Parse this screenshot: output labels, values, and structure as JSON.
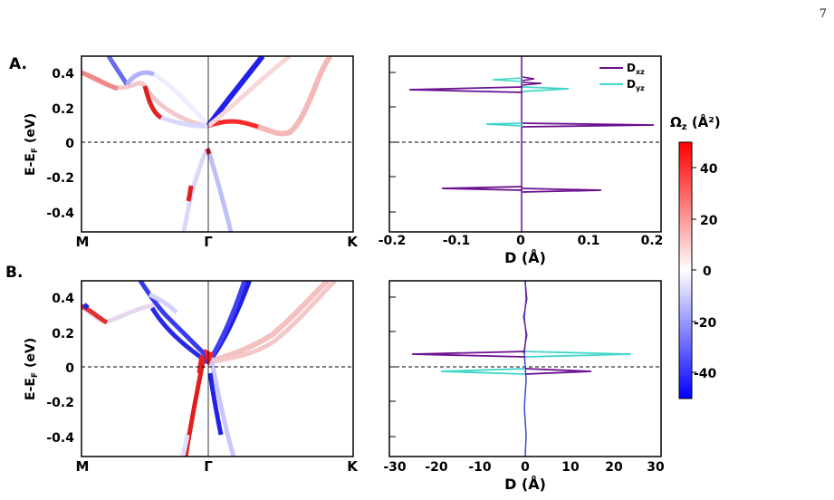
{
  "page_number": "7",
  "panel_a_label": "A.",
  "panel_b_label": "B.",
  "band_x_ticks": [
    "M",
    "Γ",
    "K"
  ],
  "band_y_ticks": [
    "0.4",
    "0.2",
    "0",
    "-0.2",
    "-0.4"
  ],
  "band_ylabel": "E-E",
  "band_ylabel_sub": "F",
  "band_ylabel_tail": " (eV)",
  "dipole_a_x_ticks": [
    "-0.2",
    "-0.1",
    "0",
    "0.1",
    "0.2"
  ],
  "dipole_b_x_ticks": [
    "-30",
    "-20",
    "-10",
    "0",
    "10",
    "20",
    "30"
  ],
  "dipole_xlabel": "D (Å)",
  "legend": [
    {
      "base": "D",
      "sub": "xz",
      "color": "#6a0f8e"
    },
    {
      "base": "D",
      "sub": "yz",
      "color": "#3fd6c8"
    }
  ],
  "colorbar": {
    "title": "Ω",
    "title_sub": "z",
    "title_tail": " (Å²)",
    "ticks": [
      "40",
      "20",
      "0",
      "-20",
      "-40"
    ],
    "range": [
      -50,
      50
    ]
  },
  "chart_data": [
    {
      "type": "line",
      "panel": "A",
      "kind": "band structure colored by Berry curvature",
      "x_ticks": [
        "M",
        "Γ",
        "K"
      ],
      "ylabel": "E-EF (eV)",
      "ylim": [
        -0.5,
        0.5
      ],
      "color_scale": "bwr",
      "color_range": [
        -50,
        50
      ],
      "series": [
        {
          "x": [
            0,
            0.2,
            0.4,
            0.5
          ],
          "y": [
            0.4,
            0.3,
            0.33,
            0.1
          ],
          "omega": [
            0,
            5,
            30,
            40
          ]
        },
        {
          "x": [
            0.5,
            0.6,
            0.8,
            1.0
          ],
          "y": [
            0.1,
            0.12,
            0.1,
            0.45
          ],
          "omega": [
            -40,
            -15,
            20,
            10
          ]
        },
        {
          "x": [
            0.5,
            0.45,
            0.4
          ],
          "y": [
            -0.05,
            -0.25,
            -0.5
          ],
          "omega": [
            10,
            -5,
            40
          ]
        }
      ]
    },
    {
      "type": "line",
      "panel": "A",
      "kind": "dipole",
      "xlabel": "D (Å)",
      "xlim": [
        -0.2,
        0.2
      ],
      "ylim": [
        -0.5,
        0.5
      ],
      "series": [
        {
          "name": "Dxz",
          "peaks": [
            {
              "y": 0.3,
              "d": -0.16
            },
            {
              "y": 0.1,
              "d": 0.2
            },
            {
              "y": -0.27,
              "d": -0.11
            },
            {
              "y": -0.27,
              "d": 0.12
            },
            {
              "y": 0.35,
              "d": 0.03
            }
          ]
        },
        {
          "name": "Dyz",
          "peaks": [
            {
              "y": 0.3,
              "d": 0.07
            },
            {
              "y": 0.35,
              "d": -0.04
            },
            {
              "y": 0.1,
              "d": -0.05
            }
          ]
        }
      ]
    },
    {
      "type": "line",
      "panel": "B",
      "kind": "band structure colored by Berry curvature",
      "x_ticks": [
        "M",
        "Γ",
        "K"
      ],
      "ylabel": "E-EF (eV)",
      "ylim": [
        -0.5,
        0.5
      ],
      "color_scale": "bwr",
      "color_range": [
        -50,
        50
      ]
    },
    {
      "type": "line",
      "panel": "B",
      "kind": "dipole",
      "xlabel": "D (Å)",
      "xlim": [
        -30,
        30
      ],
      "ylim": [
        -0.5,
        0.5
      ],
      "series": [
        {
          "name": "Dxz",
          "peaks": [
            {
              "y": 0.07,
              "d": -25
            },
            {
              "y": -0.02,
              "d": 15
            }
          ]
        },
        {
          "name": "Dyz",
          "peaks": [
            {
              "y": 0.07,
              "d": 24
            },
            {
              "y": -0.02,
              "d": -18
            }
          ]
        }
      ]
    }
  ]
}
